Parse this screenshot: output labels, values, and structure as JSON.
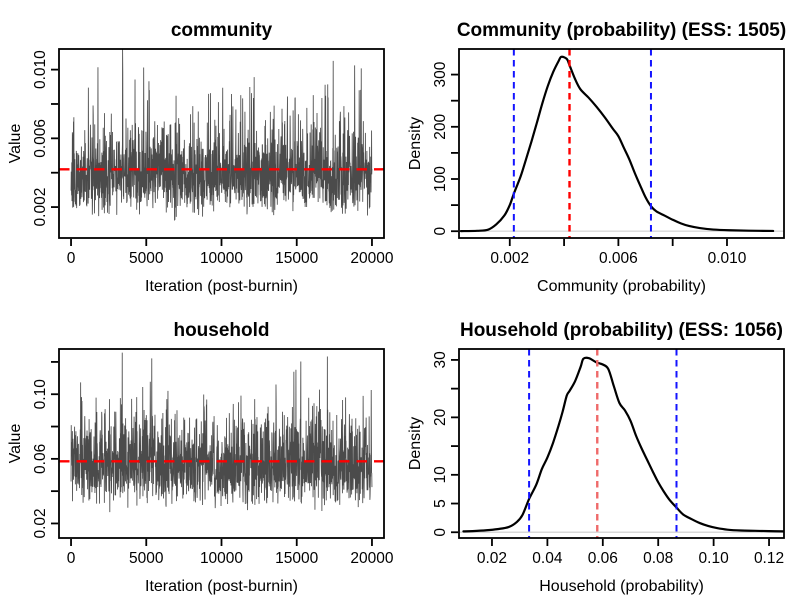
{
  "figure": {
    "background": "#ffffff",
    "text_color": "#000000",
    "axis_color": "#000000",
    "trace_color": "#4b4b4b",
    "mean_line_color": "#ff0000",
    "ci_line_color": "#1414ff",
    "zero_line_color": "#d9d9d9"
  },
  "chart_data": [
    {
      "id": "trace_community",
      "type": "line",
      "subtype": "mcmc-trace",
      "title": "community",
      "xlabel": "Iteration (post-burnin)",
      "ylabel": "Value",
      "xlim": [
        -800,
        20800
      ],
      "ylim": [
        0.0002,
        0.0112
      ],
      "xticks": [
        0,
        5000,
        10000,
        15000,
        20000
      ],
      "xtick_labels": [
        "0",
        "5000",
        "10000",
        "15000",
        "20000"
      ],
      "yticks": [
        0.002,
        0.004,
        0.006,
        0.008,
        0.01
      ],
      "ytick_labels": [
        "0.002",
        "",
        "0.006",
        "",
        "0.010"
      ],
      "grid": false,
      "trace": {
        "n": 1600,
        "iterations": 20000,
        "center": 0.0039,
        "log_sd": 0.34,
        "seed": 20231,
        "observed_range": [
          0.0007,
          0.0115
        ],
        "color": "#4b4b4b"
      },
      "mean_line": {
        "value": 0.0042,
        "color": "#ff0000",
        "dash": "horizontal"
      }
    },
    {
      "id": "density_community",
      "type": "area",
      "subtype": "posterior-density",
      "title": "Community (probability)  (ESS: 1505)",
      "ess": 1505,
      "xlabel": "Community (probability)",
      "ylabel": "Density",
      "xlim": [
        0.00013,
        0.0121
      ],
      "ylim": [
        -13,
        349
      ],
      "xticks": [
        0.002,
        0.004,
        0.006,
        0.008,
        0.01
      ],
      "xtick_labels": [
        "0.002",
        "",
        "0.006",
        "",
        "0.010"
      ],
      "yticks": [
        0,
        50,
        100,
        150,
        200,
        250,
        300
      ],
      "ytick_labels": [
        "0",
        "",
        "100",
        "",
        "200",
        "",
        "300"
      ],
      "grid": false,
      "curve_color": "#000000",
      "zero_line": true,
      "points": [
        [
          0.0002,
          0.2
        ],
        [
          0.0008,
          0.8
        ],
        [
          0.0012,
          3
        ],
        [
          0.0015,
          13
        ],
        [
          0.0018,
          30
        ],
        [
          0.002,
          50
        ],
        [
          0.00215,
          72
        ],
        [
          0.0024,
          105
        ],
        [
          0.0026,
          138
        ],
        [
          0.0028,
          172
        ],
        [
          0.003,
          208
        ],
        [
          0.0032,
          245
        ],
        [
          0.0034,
          278
        ],
        [
          0.0036,
          305
        ],
        [
          0.0038,
          326
        ],
        [
          0.0039,
          334
        ],
        [
          0.0041,
          330
        ],
        [
          0.0042,
          318
        ],
        [
          0.0044,
          292
        ],
        [
          0.0046,
          272
        ],
        [
          0.0049,
          256
        ],
        [
          0.0052,
          238
        ],
        [
          0.0055,
          218
        ],
        [
          0.0058,
          196
        ],
        [
          0.006,
          182
        ],
        [
          0.0062,
          160
        ],
        [
          0.0064,
          138
        ],
        [
          0.0066,
          112
        ],
        [
          0.0068,
          88
        ],
        [
          0.007,
          65
        ],
        [
          0.0072,
          48
        ],
        [
          0.0074,
          38
        ],
        [
          0.0077,
          30
        ],
        [
          0.008,
          22
        ],
        [
          0.0083,
          15
        ],
        [
          0.0086,
          10
        ],
        [
          0.009,
          6
        ],
        [
          0.0095,
          3.2
        ],
        [
          0.0101,
          1.8
        ],
        [
          0.0108,
          1
        ],
        [
          0.0117,
          0.5
        ]
      ],
      "mean_line": {
        "value": 0.0042,
        "color": "#ff0000",
        "dash": "vertical"
      },
      "ci_lines": {
        "values": [
          0.00215,
          0.0072
        ],
        "color": "#1414ff",
        "dash": "vertical"
      }
    },
    {
      "id": "trace_household",
      "type": "line",
      "subtype": "mcmc-trace",
      "title": "household",
      "xlabel": "Iteration (post-burnin)",
      "ylabel": "Value",
      "xlim": [
        -800,
        20800
      ],
      "ylim": [
        0.011,
        0.128
      ],
      "xticks": [
        0,
        5000,
        10000,
        15000,
        20000
      ],
      "xtick_labels": [
        "0",
        "5000",
        "10000",
        "15000",
        "20000"
      ],
      "yticks": [
        0.02,
        0.04,
        0.06,
        0.08,
        0.1,
        0.12
      ],
      "ytick_labels": [
        "0.02",
        "",
        "0.06",
        "",
        "0.10",
        ""
      ],
      "grid": false,
      "trace": {
        "n": 1600,
        "iterations": 20000,
        "center": 0.0565,
        "log_sd": 0.25,
        "seed": 77013,
        "observed_range": [
          0.018,
          0.125
        ],
        "color": "#4b4b4b"
      },
      "mean_line": {
        "value": 0.0585,
        "color": "#ff0000",
        "dash": "horizontal"
      }
    },
    {
      "id": "density_household",
      "type": "area",
      "subtype": "posterior-density",
      "title": "Household (probability)  (ESS: 1056)",
      "ess": 1056,
      "xlabel": "Household (probability)",
      "ylabel": "Density",
      "xlim": [
        0.0081,
        0.1254
      ],
      "ylim": [
        -1,
        31.9
      ],
      "xticks": [
        0.02,
        0.04,
        0.06,
        0.08,
        0.1,
        0.12
      ],
      "xtick_labels": [
        "0.02",
        "0.04",
        "0.06",
        "0.08",
        "0.10",
        "0.12"
      ],
      "yticks": [
        0,
        5,
        10,
        15,
        20,
        25,
        30
      ],
      "ytick_labels": [
        "0",
        "5",
        "10",
        "",
        "20",
        "",
        "30"
      ],
      "grid": false,
      "curve_color": "#000000",
      "zero_line": true,
      "points": [
        [
          0.0097,
          0.15
        ],
        [
          0.013,
          0.2
        ],
        [
          0.018,
          0.35
        ],
        [
          0.022,
          0.55
        ],
        [
          0.026,
          0.9
        ],
        [
          0.029,
          1.8
        ],
        [
          0.031,
          3
        ],
        [
          0.0334,
          5.8
        ],
        [
          0.036,
          8.3
        ],
        [
          0.038,
          11
        ],
        [
          0.04,
          13
        ],
        [
          0.042,
          15.5
        ],
        [
          0.044,
          18.5
        ],
        [
          0.0455,
          21
        ],
        [
          0.047,
          23.8
        ],
        [
          0.048,
          24.6
        ],
        [
          0.05,
          26.3
        ],
        [
          0.052,
          28.8
        ],
        [
          0.053,
          30.2
        ],
        [
          0.055,
          30.3
        ],
        [
          0.0576,
          29.6
        ],
        [
          0.06,
          29.2
        ],
        [
          0.062,
          28.4
        ],
        [
          0.064,
          25.4
        ],
        [
          0.066,
          22.5
        ],
        [
          0.068,
          21.2
        ],
        [
          0.07,
          19.4
        ],
        [
          0.072,
          16.8
        ],
        [
          0.074,
          14.6
        ],
        [
          0.076,
          12.6
        ],
        [
          0.078,
          10.6
        ],
        [
          0.08,
          8.7
        ],
        [
          0.082,
          7.1
        ],
        [
          0.084,
          5.7
        ],
        [
          0.0866,
          4.3
        ],
        [
          0.089,
          3.1
        ],
        [
          0.092,
          2.3
        ],
        [
          0.095,
          1.6
        ],
        [
          0.098,
          1.1
        ],
        [
          0.101,
          0.75
        ],
        [
          0.105,
          0.45
        ],
        [
          0.11,
          0.3
        ],
        [
          0.115,
          0.25
        ],
        [
          0.12,
          0.2
        ],
        [
          0.1254,
          0.15
        ]
      ],
      "mean_line": {
        "value": 0.058,
        "color": "#ef6a6a",
        "dash": "vertical"
      },
      "ci_lines": {
        "values": [
          0.0334,
          0.0866
        ],
        "color": "#1414ff",
        "dash": "vertical"
      }
    }
  ]
}
